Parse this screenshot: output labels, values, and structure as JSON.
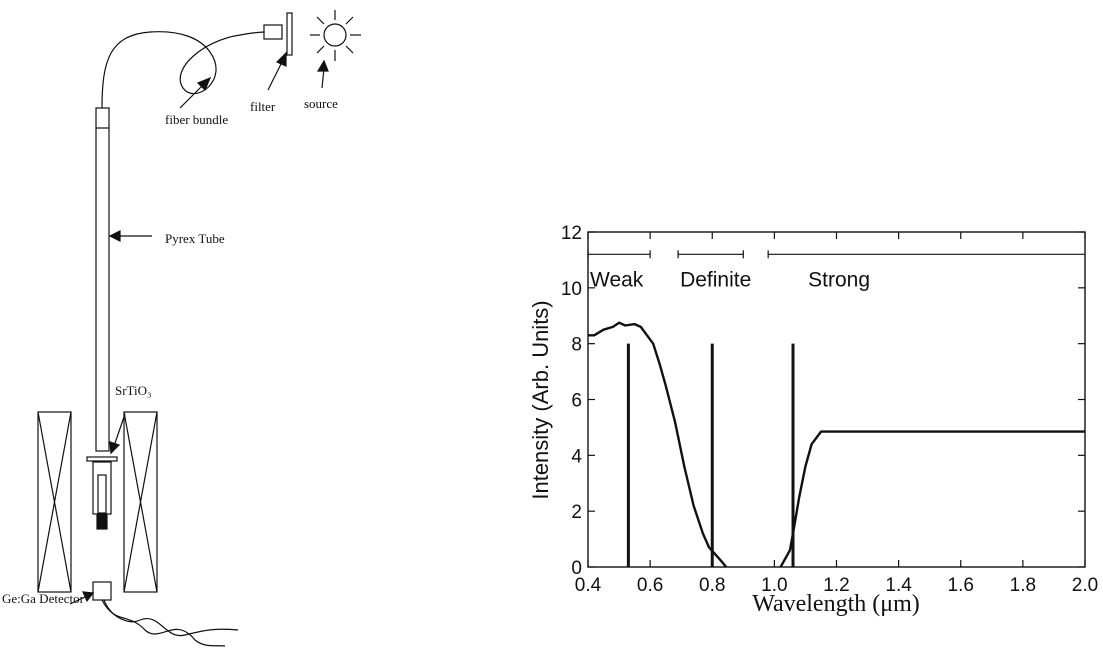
{
  "apparatus": {
    "labels": {
      "fiber_bundle": "fiber bundle",
      "filter": "filter",
      "source": "source",
      "pyrex_tube": "Pyrex Tube",
      "srtio3": "SrTiO₃",
      "detector": "Ge:Ga Detector"
    }
  },
  "chart_data": {
    "type": "line",
    "title": "",
    "xlabel": "Wavelength (μm)",
    "ylabel": "Intensity (Arb. Units)",
    "xlim": [
      0.4,
      2.0
    ],
    "ylim": [
      0,
      12
    ],
    "xticks": [
      0.4,
      0.6,
      0.8,
      1.0,
      1.2,
      1.4,
      1.6,
      1.8,
      2.0
    ],
    "yticks": [
      0,
      2,
      4,
      6,
      8,
      10,
      12
    ],
    "xtick_labels": [
      "0.4",
      "0.6",
      "0.8",
      "1.0",
      "1.2",
      "1.4",
      "1.6",
      "1.8",
      "2.0"
    ],
    "ytick_labels": [
      "0",
      "2",
      "4",
      "6",
      "8",
      "10",
      "12"
    ],
    "grid": false,
    "series": [
      {
        "x": [
          0.4,
          0.42,
          0.45,
          0.48,
          0.5,
          0.52,
          0.55,
          0.57,
          0.59,
          0.61,
          0.63,
          0.65,
          0.68,
          0.71,
          0.74,
          0.77,
          0.79,
          0.81,
          0.83,
          0.845
        ],
        "y": [
          8.3,
          8.3,
          8.5,
          8.6,
          8.75,
          8.65,
          8.7,
          8.6,
          8.3,
          8.0,
          7.3,
          6.5,
          5.2,
          3.6,
          2.2,
          1.2,
          0.7,
          0.45,
          0.2,
          0.0
        ]
      },
      {
        "x": [
          1.02,
          1.05,
          1.06,
          1.08,
          1.1,
          1.12,
          1.15,
          1.2,
          1.4,
          1.6,
          1.8,
          2.0
        ],
        "y": [
          0.0,
          0.6,
          1.2,
          2.5,
          3.6,
          4.4,
          4.85,
          4.85,
          4.85,
          4.85,
          4.85,
          4.85
        ]
      }
    ],
    "markers": [
      {
        "x": 0.53,
        "y": 8.0
      },
      {
        "x": 0.8,
        "y": 8.0
      },
      {
        "x": 1.06,
        "y": 8.0
      }
    ],
    "regions": [
      {
        "label": "Weak",
        "from": 0.4,
        "to": 0.6
      },
      {
        "label": "Definite",
        "from": 0.69,
        "to": 0.9
      },
      {
        "label": "Strong",
        "from": 0.98,
        "to": 2.0
      }
    ],
    "region_line_y": 11.2
  }
}
